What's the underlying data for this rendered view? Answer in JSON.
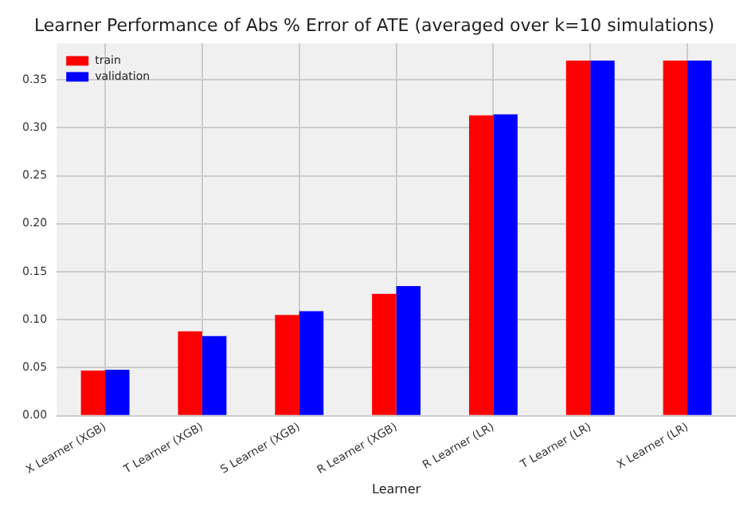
{
  "chart_data": {
    "type": "bar",
    "title": "Learner Performance of Abs % Error of ATE (averaged over k=10 simulations)",
    "xlabel": "Learner",
    "categories": [
      "X Learner (XGB)",
      "T Learner (XGB)",
      "S Learner (XGB)",
      "R Learner (XGB)",
      "R Learner (LR)",
      "T Learner (LR)",
      "X Learner (LR)"
    ],
    "series": [
      {
        "name": "train",
        "color": "#ff0000",
        "values": [
          0.047,
          0.088,
          0.105,
          0.127,
          0.313,
          0.37,
          0.37
        ]
      },
      {
        "name": "validation",
        "color": "#0000ff",
        "values": [
          0.048,
          0.083,
          0.109,
          0.135,
          0.314,
          0.37,
          0.37
        ]
      }
    ],
    "ylim": [
      0,
      0.388
    ],
    "yticks": [
      {
        "value": 0,
        "label": "0.00"
      },
      {
        "value": 0.05,
        "label": "0.05"
      },
      {
        "value": 0.1,
        "label": "0.10"
      },
      {
        "value": 0.15,
        "label": "0.15"
      },
      {
        "value": 0.2,
        "label": "0.20"
      },
      {
        "value": 0.25,
        "label": "0.25"
      },
      {
        "value": 0.3,
        "label": "0.30"
      },
      {
        "value": 0.35,
        "label": "0.35"
      }
    ],
    "grid": true,
    "legend": "top left"
  }
}
